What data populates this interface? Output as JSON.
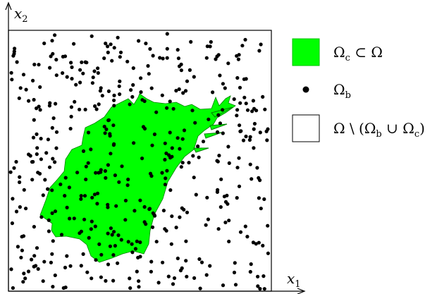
{
  "axes": {
    "x_label": {
      "base": "x",
      "sub": "1"
    },
    "y_label": {
      "base": "x",
      "sub": "2"
    }
  },
  "legend": [
    {
      "key": "omega_c",
      "swatch": "filled-rect",
      "color": "#00ff00",
      "text_main": "Ω",
      "text_sub": "c",
      "text_tail": " ⊂ Ω"
    },
    {
      "key": "omega_b",
      "swatch": "dot",
      "color": "#000000",
      "text_main": "Ω",
      "text_sub": "b",
      "text_tail": ""
    },
    {
      "key": "omega_rest",
      "swatch": "empty-rect",
      "color": "#ffffff",
      "text_main": "Ω \\ (Ω",
      "text_sub": "b",
      "text_tail": " ∪ Ω",
      "text_sub2": "c",
      "text_tail2": ")"
    }
  ],
  "colors": {
    "region_fill": "#00ff00",
    "region_stroke": "#008000",
    "dot": "#000000",
    "frame": "#000000"
  }
}
